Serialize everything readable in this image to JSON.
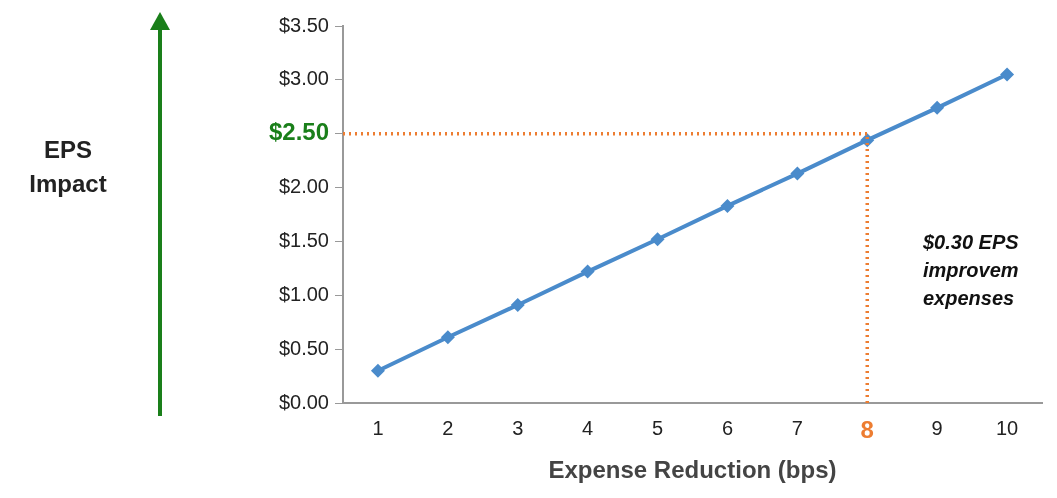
{
  "chart_data": {
    "type": "line",
    "xlabel": "Expense Reduction (bps)",
    "categories": [
      "1",
      "2",
      "3",
      "4",
      "5",
      "6",
      "7",
      "8",
      "9",
      "10"
    ],
    "series": [
      {
        "color": "#4a8bcb",
        "values": [
          0.3,
          0.61,
          0.91,
          1.22,
          1.52,
          1.83,
          2.13,
          2.44,
          2.74,
          3.05
        ]
      }
    ],
    "ylim": [
      0,
      3.5
    ],
    "yticks": [
      {
        "value": 0,
        "label": "$0.00"
      },
      {
        "value": 0.5,
        "label": "$0.50"
      },
      {
        "value": 1,
        "label": "$1.00"
      },
      {
        "value": 1.5,
        "label": "$1.50"
      },
      {
        "value": 2,
        "label": "$2.00"
      },
      {
        "value": 2.5,
        "label": "$2.50"
      },
      {
        "value": 3,
        "label": "$3.00"
      },
      {
        "value": 3.5,
        "label": "$3.50"
      }
    ],
    "ref_lines": [
      {
        "axis": "y",
        "value": 2.5,
        "color": "#ed7d31",
        "line_style": "dotted"
      },
      {
        "axis": "x",
        "value": "8",
        "color": "#ed7d31",
        "line_style": "dotted"
      }
    ],
    "annotations": [
      "EPS\nImpact",
      "$0.30 EPS\nimprovem\nexpenses"
    ],
    "marker": "diamond",
    "line_style": "solid",
    "grid": false,
    "legend": false
  }
}
